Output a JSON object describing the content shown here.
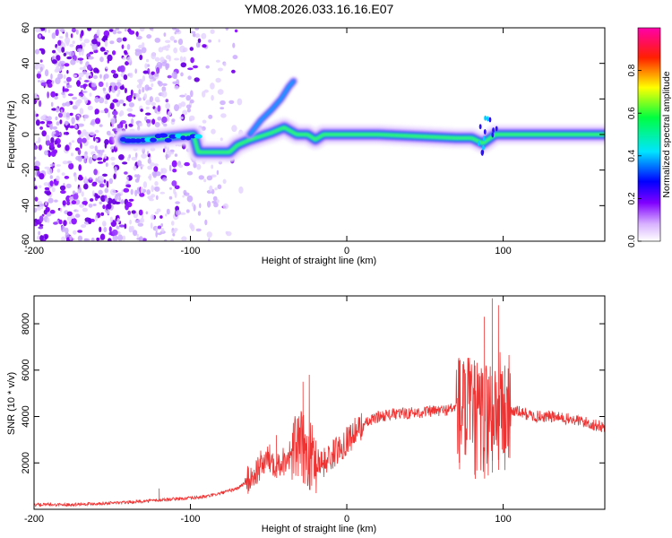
{
  "title": "YM08.2026.033.16.16.E07",
  "chart_data": [
    {
      "type": "heatmap",
      "name": "spectrogram",
      "xlabel": "Height of straight line (km)",
      "ylabel": "Frequency (Hz)",
      "xlim": [
        -200,
        165
      ],
      "ylim": [
        -60,
        60
      ],
      "xticks": [
        -200,
        -100,
        0,
        100
      ],
      "xtick_labels": [
        "-200",
        "-100",
        "0",
        "100"
      ],
      "yticks": [
        -60,
        -40,
        -20,
        0,
        20,
        40,
        60
      ],
      "ytick_labels": [
        "-60",
        "-40",
        "-20",
        "0",
        "20",
        "40",
        "60"
      ],
      "colorbar": {
        "label": "Normalized spectral amplitude",
        "range": [
          0,
          1
        ],
        "ticks": [
          0.0,
          0.2,
          0.4,
          0.6,
          0.8
        ],
        "tick_labels": [
          "0.0",
          "0.2",
          "0.4",
          "0.6",
          "0.8"
        ]
      },
      "ridge": [
        {
          "x": -143,
          "y": -3
        },
        {
          "x": -130,
          "y": -3
        },
        {
          "x": -120,
          "y": -2
        },
        {
          "x": -110,
          "y": -1
        },
        {
          "x": -98,
          "y": 0
        },
        {
          "x": -95,
          "y": -10
        },
        {
          "x": -85,
          "y": -10
        },
        {
          "x": -75,
          "y": -10
        },
        {
          "x": -70,
          "y": -6
        },
        {
          "x": -62,
          "y": -3
        },
        {
          "x": -55,
          "y": -1
        },
        {
          "x": -48,
          "y": 1
        },
        {
          "x": -40,
          "y": 4
        },
        {
          "x": -32,
          "y": 0
        },
        {
          "x": -25,
          "y": 0
        },
        {
          "x": -20,
          "y": -3
        },
        {
          "x": -15,
          "y": 0
        },
        {
          "x": 0,
          "y": 0
        },
        {
          "x": 20,
          "y": 0
        },
        {
          "x": 45,
          "y": -1
        },
        {
          "x": 70,
          "y": -2
        },
        {
          "x": 80,
          "y": -2
        },
        {
          "x": 87,
          "y": -5
        },
        {
          "x": 95,
          "y": 0
        },
        {
          "x": 100,
          "y": 0
        },
        {
          "x": 130,
          "y": 0
        },
        {
          "x": 165,
          "y": 0
        }
      ],
      "chirp": [
        {
          "x": -62,
          "y": 0
        },
        {
          "x": -55,
          "y": 8
        },
        {
          "x": -48,
          "y": 14
        },
        {
          "x": -42,
          "y": 20
        },
        {
          "x": -37,
          "y": 27
        },
        {
          "x": -34,
          "y": 30
        }
      ],
      "noise_region_x": [
        -200,
        -75
      ]
    },
    {
      "type": "line",
      "name": "snr",
      "xlabel": "Height of straight line (km)",
      "ylabel": "SNR (10 * v/v)",
      "xlim": [
        -200,
        165
      ],
      "ylim": [
        0,
        9200
      ],
      "xticks": [
        -200,
        -100,
        0,
        100
      ],
      "xtick_labels": [
        "-200",
        "-100",
        "0",
        "100"
      ],
      "yticks": [
        2000,
        4000,
        6000,
        8000
      ],
      "ytick_labels": [
        "2000",
        "4000",
        "6000",
        "8000"
      ],
      "color": "#ee3333",
      "series": [
        {
          "name": "SNR envelope",
          "x": [
            -200,
            -180,
            -160,
            -140,
            -130,
            -120,
            -110,
            -100,
            -90,
            -80,
            -70,
            -60,
            -55,
            -50,
            -45,
            -40,
            -35,
            -30,
            -25,
            -20,
            -15,
            -10,
            -5,
            0,
            10,
            20,
            30,
            40,
            50,
            60,
            65,
            70,
            75,
            80,
            85,
            90,
            95,
            100,
            110,
            120,
            130,
            140,
            150,
            160,
            165
          ],
          "y": [
            200,
            200,
            250,
            300,
            350,
            400,
            450,
            480,
            550,
            700,
            900,
            1400,
            1900,
            2200,
            2000,
            2100,
            2500,
            2800,
            2400,
            2100,
            2000,
            2300,
            2600,
            3000,
            3600,
            4000,
            4100,
            4150,
            4200,
            4250,
            4300,
            4400,
            4200,
            4000,
            3800,
            4000,
            4300,
            4300,
            4200,
            4000,
            4000,
            3900,
            3800,
            3600,
            3550
          ]
        }
      ],
      "peaks": [
        {
          "x": -45,
          "y": 3200
        },
        {
          "x": -28,
          "y": 5500
        },
        {
          "x": -24,
          "y": 5800
        },
        {
          "x": -120,
          "y": 900
        },
        {
          "x": 72,
          "y": 6400
        },
        {
          "x": 82,
          "y": 6200
        },
        {
          "x": 88,
          "y": 8300
        },
        {
          "x": 93,
          "y": 9100
        },
        {
          "x": 97,
          "y": 8800
        },
        {
          "x": 101,
          "y": 6200
        }
      ]
    }
  ]
}
